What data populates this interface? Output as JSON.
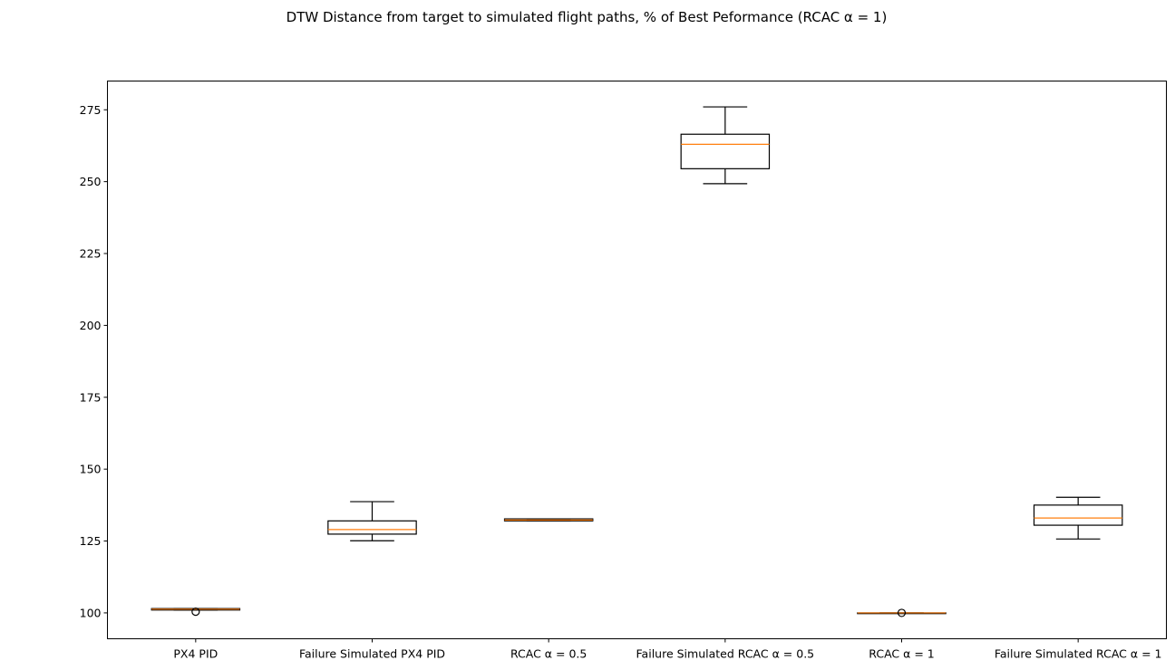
{
  "chart_data": {
    "type": "box",
    "title": "DTW Distance from target to simulated flight paths, % of Best Peformance (RCAC α = 1)",
    "xlabel": "",
    "ylabel": "",
    "ylim": [
      91,
      285
    ],
    "yticks": [
      100,
      125,
      150,
      175,
      200,
      225,
      250,
      275
    ],
    "grid": false,
    "categories": [
      "PX4 PID",
      "Failure Simulated PX4 PID",
      "RCAC α = 0.5",
      "Failure Simulated RCAC α = 0.5",
      "RCAC α = 1",
      "Failure Simulated RCAC α = 1"
    ],
    "boxes": [
      {
        "whisker_low": 101.0,
        "q1": 101.0,
        "median": 101.3,
        "q3": 101.5,
        "whisker_high": 101.5,
        "outliers": [
          100.4
        ]
      },
      {
        "whisker_low": 125.1,
        "q1": 127.4,
        "median": 129.0,
        "q3": 132.0,
        "whisker_high": 138.7,
        "outliers": []
      },
      {
        "whisker_low": 132.0,
        "q1": 132.0,
        "median": 132.3,
        "q3": 132.7,
        "whisker_high": 132.7,
        "outliers": []
      },
      {
        "whisker_low": 249.3,
        "q1": 254.5,
        "median": 263.0,
        "q3": 266.5,
        "whisker_high": 276.0,
        "outliers": []
      },
      {
        "whisker_low": 100.0,
        "q1": 100.0,
        "median": 100.0,
        "q3": 100.0,
        "whisker_high": 100.0,
        "outliers": [
          100.0
        ]
      },
      {
        "whisker_low": 125.7,
        "q1": 130.5,
        "median": 133.0,
        "q3": 137.5,
        "whisker_high": 140.2,
        "outliers": []
      }
    ],
    "colors": {
      "box": "#000000",
      "median": "#ff7f0e",
      "background": "#ffffff"
    }
  }
}
